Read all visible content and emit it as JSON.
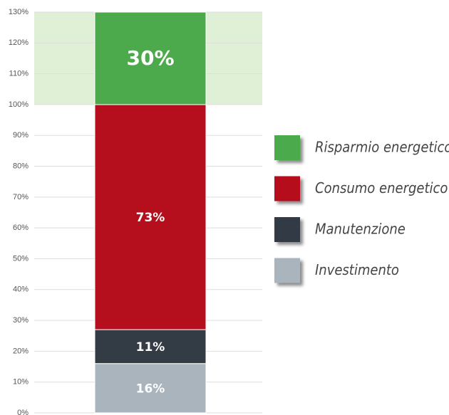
{
  "chart_data": {
    "type": "stacked_bar",
    "categories": [
      null
    ],
    "series": [
      {
        "name": "Investimento",
        "color": "#aab4bd",
        "values": [
          16
        ],
        "value_labels": [
          "16%"
        ]
      },
      {
        "name": "Manutenzione",
        "color": "#333b44",
        "values": [
          11
        ],
        "value_labels": [
          "11%"
        ]
      },
      {
        "name": "Consumo energetico",
        "color": "#b50e1c",
        "values": [
          73
        ],
        "value_labels": [
          "73%"
        ]
      },
      {
        "name": "Risparmio energetico",
        "color": "#4caa4c",
        "values": [
          30
        ],
        "value_labels": [
          "30%"
        ]
      }
    ],
    "ylim": [
      0,
      130
    ],
    "yticks": [
      {
        "value": 0,
        "label": "0%"
      },
      {
        "value": 10,
        "label": "10%"
      },
      {
        "value": 20,
        "label": "20%"
      },
      {
        "value": 30,
        "label": "30%"
      },
      {
        "value": 40,
        "label": "40%"
      },
      {
        "value": 50,
        "label": "50%"
      },
      {
        "value": 60,
        "label": "60%"
      },
      {
        "value": 70,
        "label": "70%"
      },
      {
        "value": 80,
        "label": "80%"
      },
      {
        "value": 90,
        "label": "90%"
      },
      {
        "value": 100,
        "label": "100%"
      },
      {
        "value": 110,
        "label": "110%"
      },
      {
        "value": 120,
        "label": "120%"
      },
      {
        "value": 130,
        "label": "130%"
      }
    ],
    "grid": true
  }
}
